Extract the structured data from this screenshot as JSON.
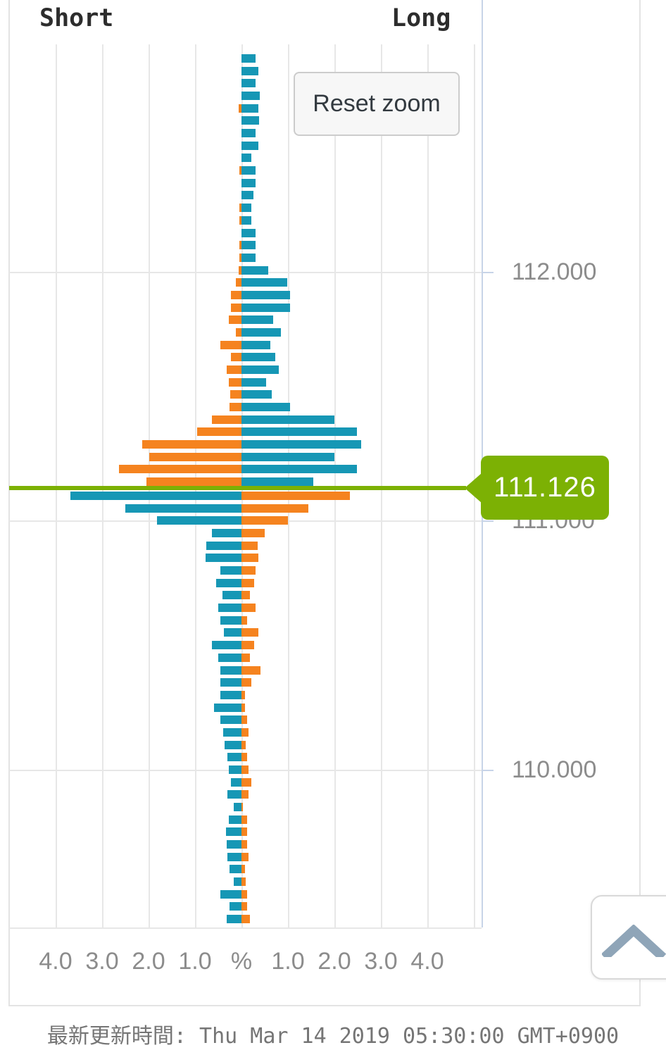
{
  "panel": {
    "short_label": "Short",
    "long_label": "Long"
  },
  "reset_zoom": {
    "label": "Reset zoom"
  },
  "current_price_badge": {
    "value": "111.126"
  },
  "footer": {
    "updated_text": "最新更新時間: Thu Mar 14 2019 05:30:00 GMT+0900"
  },
  "scroll_top_button": {
    "icon": "chevron-up-icon"
  },
  "colors": {
    "teal": "#1697b5",
    "orange": "#f5831f",
    "current_price_green": "#7cb104",
    "grid": "#e7e7e7",
    "axis_line": "#c7d4e8",
    "label_gray": "#8c8c8c"
  },
  "chart_data": {
    "type": "bar",
    "orientation": "horizontal-pyramid",
    "title_left": "Short",
    "title_right": "Long",
    "x_unit": "%",
    "x_tick_labels": [
      "4.0",
      "3.0",
      "2.0",
      "1.0",
      "%",
      "1.0",
      "2.0",
      "3.0",
      "4.0"
    ],
    "x_axis_range_pct": 5,
    "pct_per_gridline": 1,
    "y_axis_labels": [
      "112.000",
      "111.000",
      "110.000"
    ],
    "y_axis_label_prices": [
      112.0,
      111.0,
      110.0
    ],
    "current_price": 111.126,
    "price_top_bucket": 112.85,
    "price_step": 0.05,
    "rows_above_current": 35,
    "legend_note": "above current price: short=orange left, long=teal right; below: short=teal left, long=orange right",
    "series": [
      {
        "name": "short_pct_left",
        "values": [
          0,
          0,
          0,
          0,
          0.06,
          0,
          0,
          0,
          0,
          0.05,
          0,
          0,
          0.05,
          0.05,
          0,
          0.05,
          0.05,
          0.06,
          0.12,
          0.22,
          0.22,
          0.27,
          0.12,
          0.45,
          0.22,
          0.32,
          0.27,
          0.25,
          0.26,
          0.64,
          0.95,
          2.13,
          1.99,
          2.64,
          2.04,
          3.68,
          2.5,
          1.82,
          0.64,
          0.76,
          0.77,
          0.45,
          0.55,
          0.41,
          0.5,
          0.45,
          0.38,
          0.64,
          0.5,
          0.45,
          0.45,
          0.45,
          0.59,
          0.45,
          0.4,
          0.36,
          0.3,
          0.27,
          0.23,
          0.3,
          0.16,
          0.27,
          0.33,
          0.32,
          0.3,
          0.26,
          0.17,
          0.45,
          0.26,
          0.32
        ]
      },
      {
        "name": "long_pct_right",
        "values": [
          0.3,
          0.36,
          0.3,
          0.4,
          0.36,
          0.38,
          0.3,
          0.36,
          0.21,
          0.3,
          0.3,
          0.26,
          0.21,
          0.21,
          0.3,
          0.3,
          0.3,
          0.57,
          0.98,
          1.04,
          1.04,
          0.68,
          0.85,
          0.62,
          0.72,
          0.8,
          0.53,
          0.65,
          1.04,
          2.0,
          2.48,
          2.58,
          2.0,
          2.48,
          1.55,
          2.33,
          1.44,
          1.0,
          0.5,
          0.35,
          0.36,
          0.3,
          0.27,
          0.18,
          0.3,
          0.12,
          0.36,
          0.27,
          0.18,
          0.41,
          0.21,
          0.08,
          0.08,
          0.12,
          0.15,
          0.09,
          0.12,
          0.15,
          0.21,
          0.15,
          0.03,
          0.12,
          0.12,
          0.12,
          0.15,
          0.08,
          0.09,
          0.12,
          0.12,
          0.18
        ]
      }
    ]
  }
}
